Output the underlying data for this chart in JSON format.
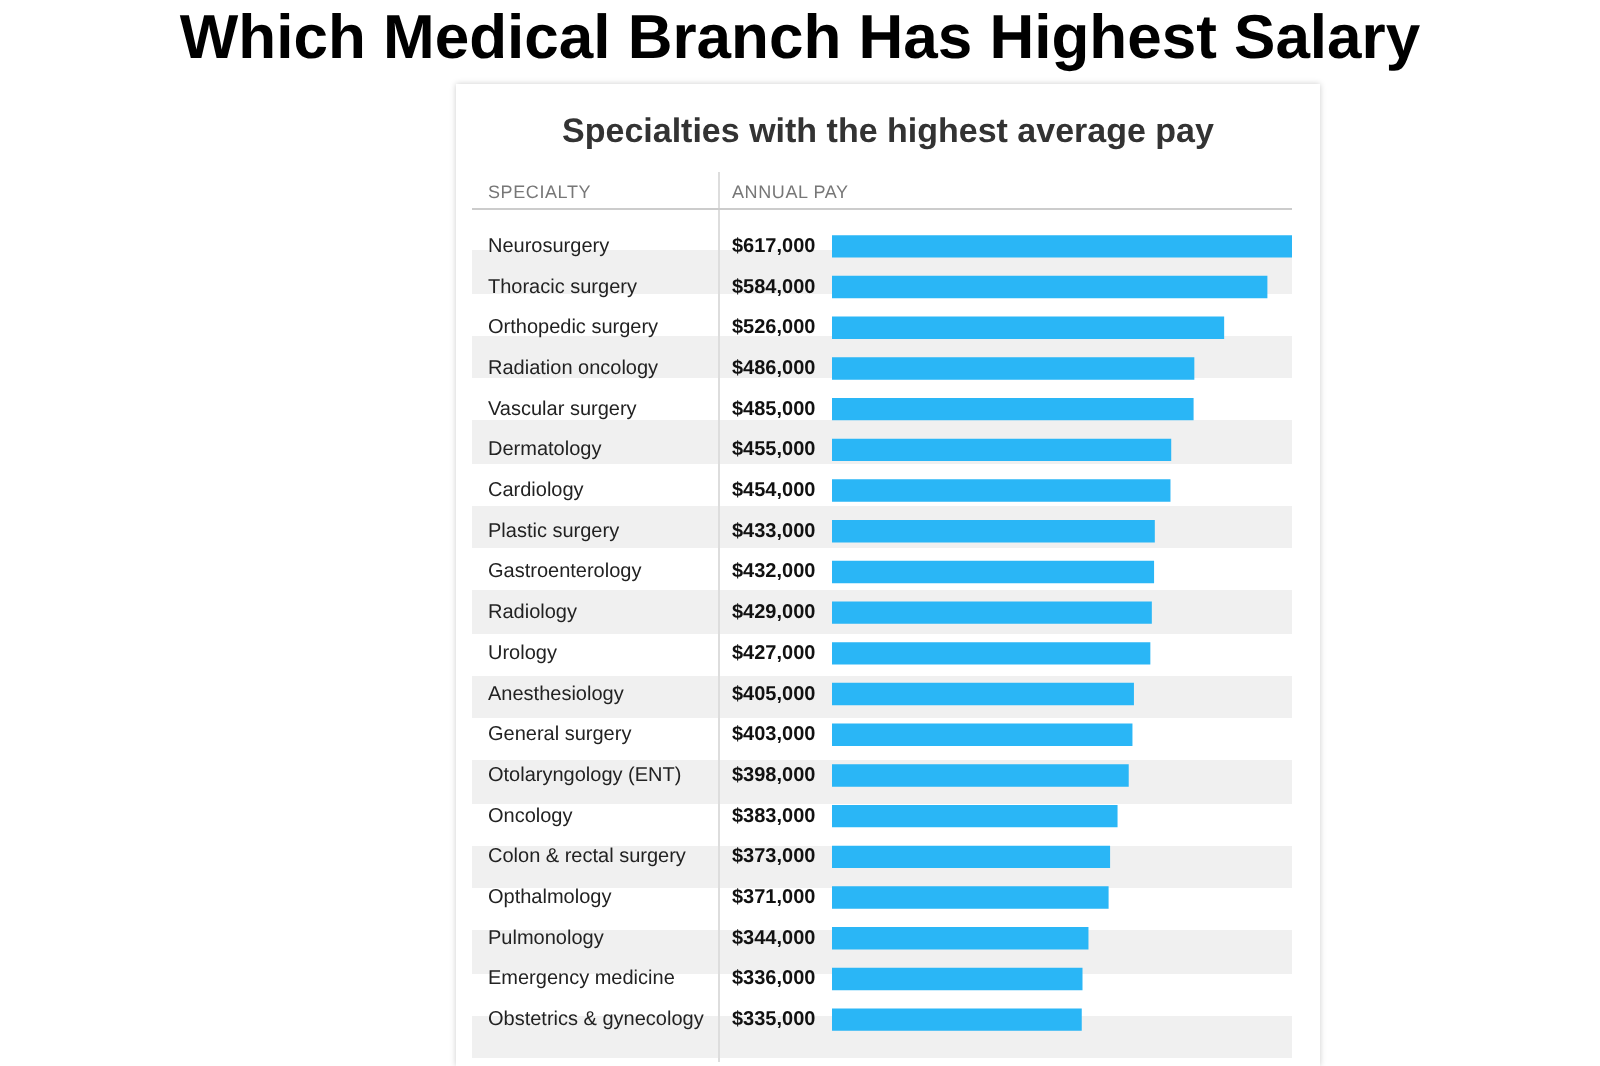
{
  "chart_data": {
    "type": "bar",
    "orientation": "horizontal",
    "title": "Which Medical Branch Has Highest Salary",
    "subtitle": "Specialties with the highest average pay",
    "annotations": [
      "SPECIALTY",
      "ANNUAL PAY"
    ],
    "categories": [
      "Neurosurgery",
      "Thoracic surgery",
      "Orthopedic surgery",
      "Radiation oncology",
      "Vascular surgery",
      "Dermatology",
      "Cardiology",
      "Plastic surgery",
      "Gastroenterology",
      "Radiology",
      "Urology",
      "Anesthesiology",
      "General surgery",
      "Otolaryngology (ENT)",
      "Oncology",
      "Colon & rectal surgery",
      "Opthalmology",
      "Pulmonology",
      "Emergency medicine",
      "Obstetrics & gynecology"
    ],
    "values": [
      617000,
      584000,
      526000,
      486000,
      485000,
      455000,
      454000,
      433000,
      432000,
      429000,
      427000,
      405000,
      403000,
      398000,
      383000,
      373000,
      371000,
      344000,
      336000,
      335000
    ],
    "value_labels": [
      "$617,000",
      "$584,000",
      "$526,000",
      "$486,000",
      "$485,000",
      "$455,000",
      "$454,000",
      "$433,000",
      "$432,000",
      "$429,000",
      "$427,000",
      "$405,000",
      "$403,000",
      "$398,000",
      "$383,000",
      "$373,000",
      "$371,000",
      "$344,000",
      "$336,000",
      "$335,000"
    ],
    "color": "#2ab6f6"
  }
}
